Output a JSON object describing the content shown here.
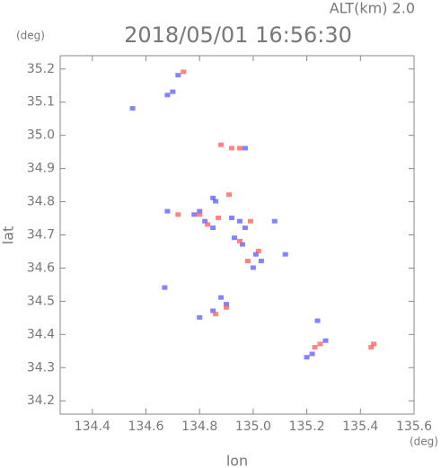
{
  "chart_data": {
    "type": "scatter",
    "title": "2018/05/01 16:56:30",
    "subtitle": "ALT(km) 2.0",
    "y_unit": "(deg)",
    "x_unit": "(deg)",
    "x_label": "lon",
    "y_label": "lat",
    "xlim": [
      134.28,
      135.6
    ],
    "ylim": [
      34.16,
      35.24
    ],
    "xticks": [
      134.4,
      134.6,
      134.8,
      {
        "value": 135.0,
        "label": "135.0"
      },
      135.2,
      135.4,
      135.6
    ],
    "yticks": [
      34.2,
      34.3,
      34.4,
      34.5,
      34.6,
      34.7,
      34.8,
      34.9,
      {
        "value": 35.0,
        "label": "35.0"
      },
      35.1,
      35.2
    ],
    "series": [
      {
        "color": "#5a5aff",
        "x": [
          134.7,
          134.68,
          134.72,
          134.55,
          134.85,
          134.86,
          134.68,
          134.78,
          134.8,
          134.82,
          134.92,
          134.95,
          134.97,
          134.93,
          134.96,
          135.01,
          135.03,
          135.0,
          134.88,
          134.9,
          134.85,
          134.67,
          135.08,
          135.12,
          135.24,
          135.27,
          135.22,
          135.2,
          134.8,
          134.97,
          134.85
        ],
        "y": [
          35.13,
          35.12,
          35.18,
          35.08,
          34.81,
          34.8,
          34.77,
          34.76,
          34.77,
          34.74,
          34.75,
          34.74,
          34.72,
          34.69,
          34.67,
          34.64,
          34.62,
          34.6,
          34.51,
          34.49,
          34.47,
          34.54,
          34.74,
          34.64,
          34.44,
          34.38,
          34.34,
          34.33,
          34.45,
          34.96,
          34.72
        ]
      },
      {
        "color": "#ff5a5a",
        "x": [
          134.74,
          134.88,
          134.92,
          134.95,
          134.91,
          134.8,
          134.83,
          134.87,
          134.95,
          135.02,
          134.98,
          134.9,
          134.86,
          135.25,
          135.23,
          135.45,
          135.44,
          134.99,
          134.72
        ],
        "y": [
          35.19,
          34.97,
          34.96,
          34.96,
          34.82,
          34.76,
          34.73,
          34.75,
          34.68,
          34.65,
          34.62,
          34.48,
          34.46,
          34.37,
          34.36,
          34.37,
          34.36,
          34.74,
          34.76
        ]
      }
    ]
  }
}
